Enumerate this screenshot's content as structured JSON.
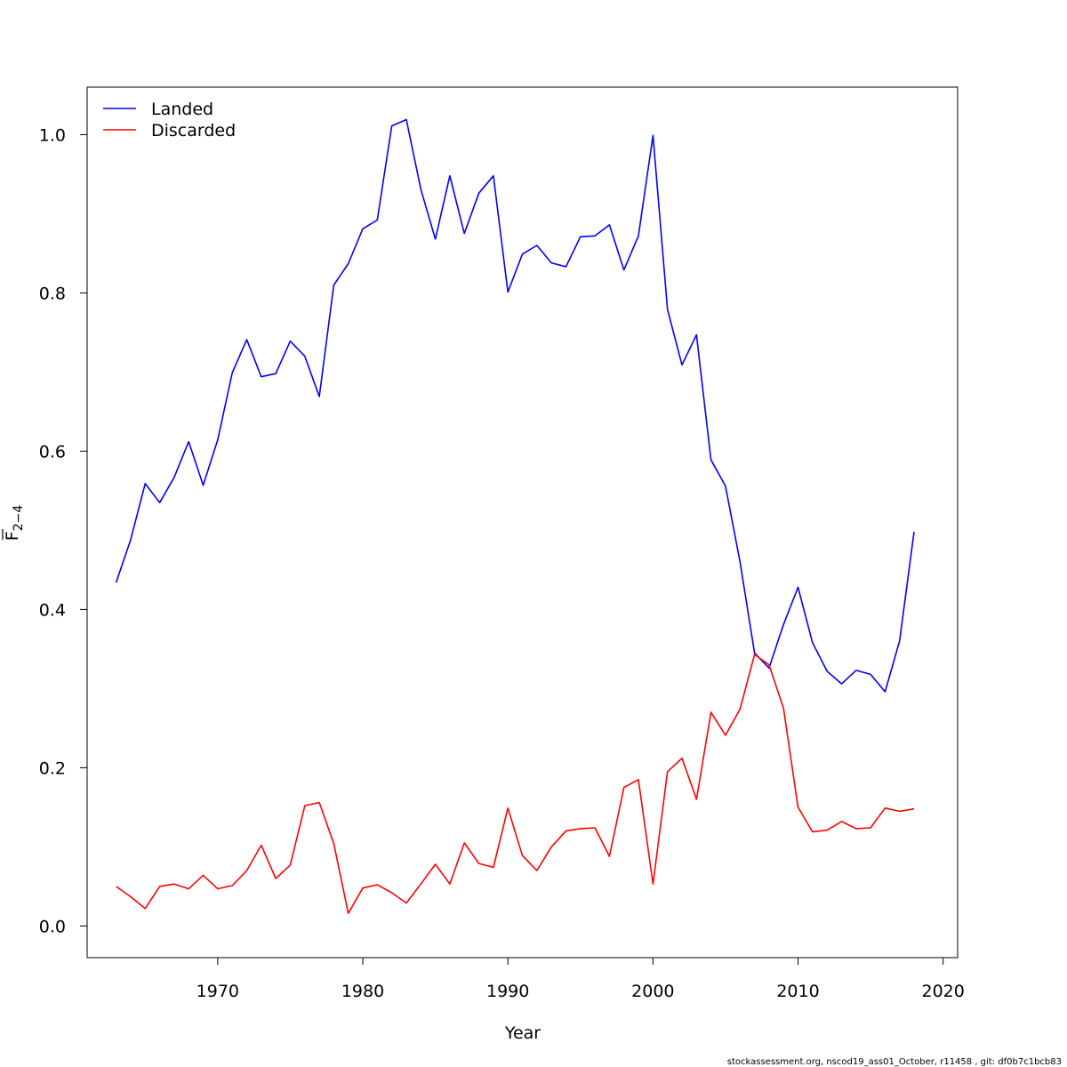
{
  "chart_data": {
    "type": "line",
    "xlabel": "Year",
    "ylabel_main": "F",
    "ylabel_sub": "2−4",
    "xlim": [
      1961,
      2021
    ],
    "ylim": [
      -0.04,
      1.06
    ],
    "xticks": [
      1970,
      1980,
      1990,
      2000,
      2010,
      2020
    ],
    "yticks": [
      0.0,
      0.2,
      0.4,
      0.6,
      0.8,
      1.0
    ],
    "ytick_labels": [
      "0.0",
      "0.2",
      "0.4",
      "0.6",
      "0.8",
      "1.0"
    ],
    "grid": false,
    "legend_position": "top-left",
    "x": [
      1963,
      1964,
      1965,
      1966,
      1967,
      1968,
      1969,
      1970,
      1971,
      1972,
      1973,
      1974,
      1975,
      1976,
      1977,
      1978,
      1979,
      1980,
      1981,
      1982,
      1983,
      1984,
      1985,
      1986,
      1987,
      1988,
      1989,
      1990,
      1991,
      1992,
      1993,
      1994,
      1995,
      1996,
      1997,
      1998,
      1999,
      2000,
      2001,
      2002,
      2003,
      2004,
      2005,
      2006,
      2007,
      2008,
      2009,
      2010,
      2011,
      2012,
      2013,
      2014,
      2015,
      2016,
      2017,
      2018
    ],
    "series": [
      {
        "name": "Landed",
        "color": "#0000ff",
        "values": [
          0.434,
          0.488,
          0.559,
          0.535,
          0.567,
          0.612,
          0.557,
          0.614,
          0.699,
          0.741,
          0.694,
          0.698,
          0.739,
          0.72,
          0.669,
          0.81,
          0.837,
          0.881,
          0.892,
          1.011,
          1.019,
          0.931,
          0.868,
          0.948,
          0.875,
          0.926,
          0.948,
          0.801,
          0.849,
          0.86,
          0.838,
          0.833,
          0.871,
          0.872,
          0.886,
          0.829,
          0.872,
          0.999,
          0.779,
          0.709,
          0.747,
          0.589,
          0.556,
          0.46,
          0.345,
          0.326,
          0.381,
          0.428,
          0.358,
          0.322,
          0.306,
          0.323,
          0.318,
          0.296,
          0.36,
          0.498
        ]
      },
      {
        "name": "Discarded",
        "color": "#ff0000",
        "values": [
          0.05,
          0.037,
          0.022,
          0.05,
          0.053,
          0.047,
          0.064,
          0.047,
          0.051,
          0.07,
          0.102,
          0.06,
          0.077,
          0.152,
          0.156,
          0.104,
          0.016,
          0.048,
          0.052,
          0.042,
          0.029,
          0.053,
          0.078,
          0.053,
          0.105,
          0.079,
          0.074,
          0.149,
          0.089,
          0.07,
          0.1,
          0.12,
          0.123,
          0.124,
          0.088,
          0.175,
          0.185,
          0.053,
          0.195,
          0.212,
          0.16,
          0.27,
          0.241,
          0.274,
          0.343,
          0.33,
          0.275,
          0.15,
          0.119,
          0.121,
          0.132,
          0.123,
          0.124,
          0.149,
          0.145,
          0.148
        ]
      }
    ]
  },
  "footer": "stockassessment.org, nscod19_ass01_October, r11458 , git: df0b7c1bcb83"
}
